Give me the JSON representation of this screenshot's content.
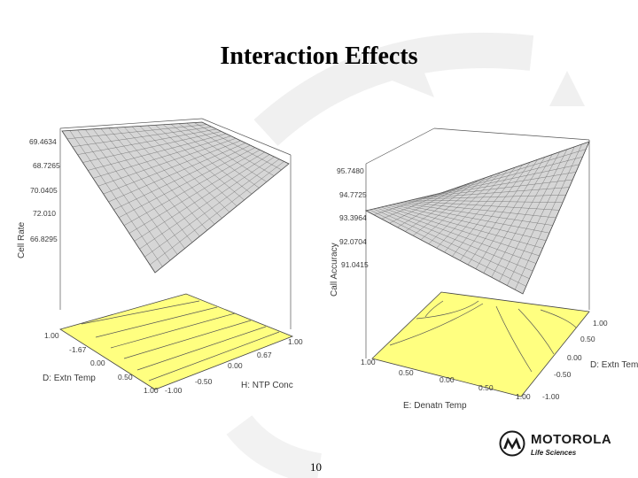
{
  "slide": {
    "title": "Interaction Effects",
    "page_number": "10"
  },
  "left_plot": {
    "z_axis_label": "Cell Rate",
    "z_ticks": [
      "69.4634",
      "68.7265",
      "70.0405",
      "72.010",
      "66.8295"
    ],
    "x_axis_label": "D: Extn Temp",
    "x_ticks": [
      "1.00",
      "-1.67",
      "0.00",
      "0.50",
      "1.00"
    ],
    "y_axis_label": "H: NTP Conc",
    "y_ticks": [
      "-1.00",
      "-0.50",
      "0.00",
      "0.67",
      "1.00"
    ]
  },
  "right_plot": {
    "z_axis_label": "Call Accuracy",
    "z_ticks": [
      "95.7480",
      "94.7725",
      "93.3964",
      "92.0704",
      "91.0415"
    ],
    "x_axis_label": "E: Denatn Temp",
    "x_ticks": [
      "1.00",
      "0.50",
      "0.00",
      "0.50",
      "1.00"
    ],
    "y_axis_label": "D: Extn Temp",
    "y_ticks": [
      "1.00",
      "0.50",
      "0.00",
      "-0.50",
      "-1.00"
    ]
  },
  "colors": {
    "surface": "#d8d8d8",
    "grid": "#555555",
    "contour_fill": "#ffff80",
    "background": "#ffffff"
  },
  "logo": {
    "brand": "MOTOROLA",
    "division": "Life Sciences"
  }
}
